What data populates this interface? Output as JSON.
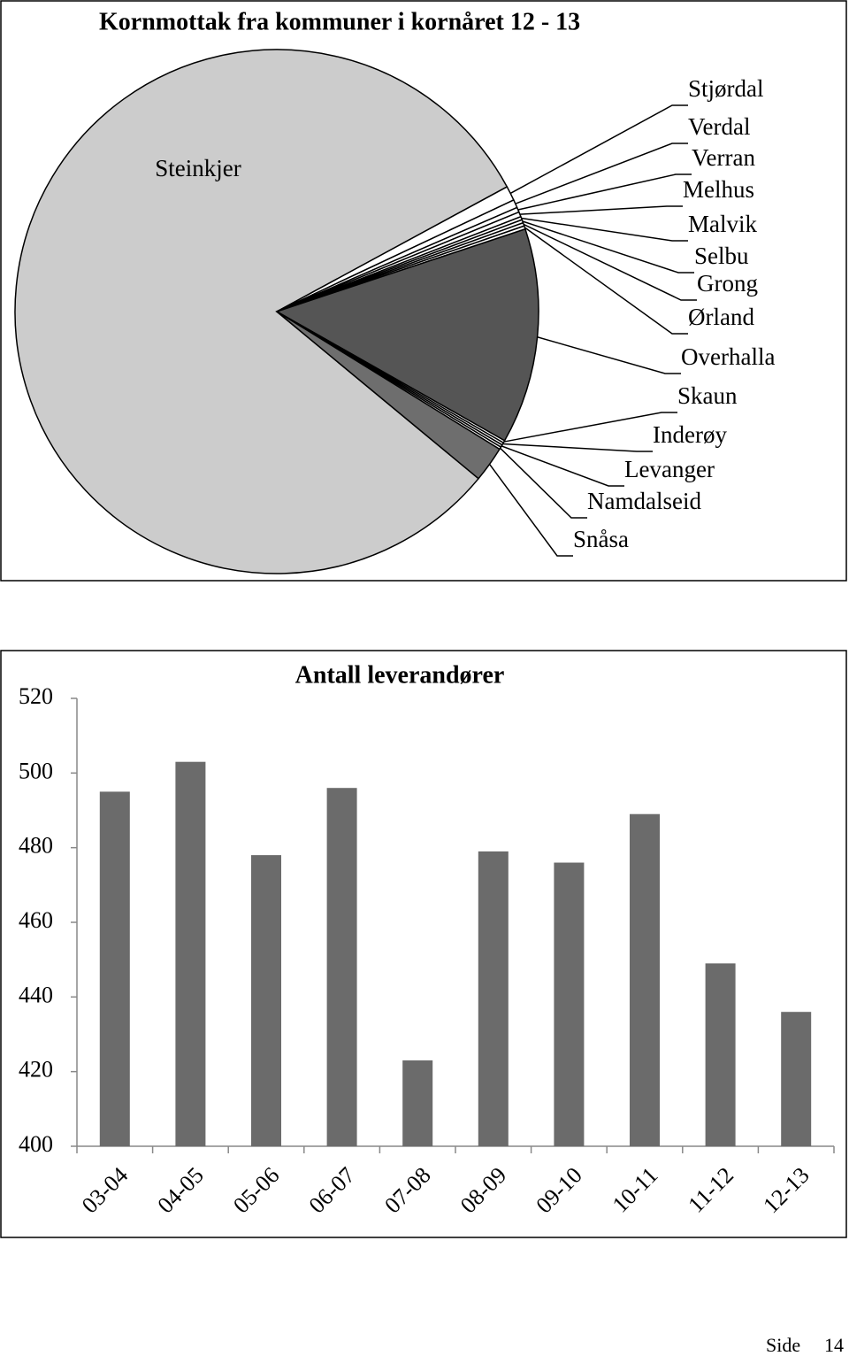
{
  "chart_data": [
    {
      "type": "pie",
      "title": "Kornmottak fra kommuner i kornåret 12 - 13",
      "categories": [
        "Steinkjer",
        "Stjørdal",
        "Verdal",
        "Verran",
        "Melhus",
        "Malvik",
        "Selbu",
        "Grong",
        "Ørland",
        "Overhalla",
        "Skaun",
        "Inderøy",
        "Levanger",
        "Namdalseid",
        "Snåsa"
      ],
      "values": [
        81.1,
        0.9,
        0.5,
        0.3,
        0.3,
        0.2,
        0.2,
        0.2,
        0.2,
        13.3,
        0.15,
        0.15,
        0.15,
        0.15,
        2.2
      ],
      "colors": [
        "#cccccc",
        "#ffffff",
        "#ffffff",
        "#ffffff",
        "#ffffff",
        "#ffffff",
        "#ffffff",
        "#ffffff",
        "#ffffff",
        "#555555",
        "#ffffff",
        "#ffffff",
        "#ffffff",
        "#ffffff",
        "#6e6e6e"
      ]
    },
    {
      "type": "bar",
      "title": "Antall leverandører",
      "categories": [
        "03-04",
        "04-05",
        "05-06",
        "06-07",
        "07-08",
        "08-09",
        "09-10",
        "10-11",
        "11-12",
        "12-13"
      ],
      "values": [
        495,
        503,
        478,
        496,
        423,
        479,
        476,
        489,
        449,
        436
      ],
      "color": "#6b6b6b",
      "ylim": [
        400,
        520
      ],
      "yticks": [
        400,
        420,
        440,
        460,
        480,
        500,
        520
      ],
      "grid": false
    }
  ],
  "footer": {
    "label": "Side",
    "page": "14"
  }
}
